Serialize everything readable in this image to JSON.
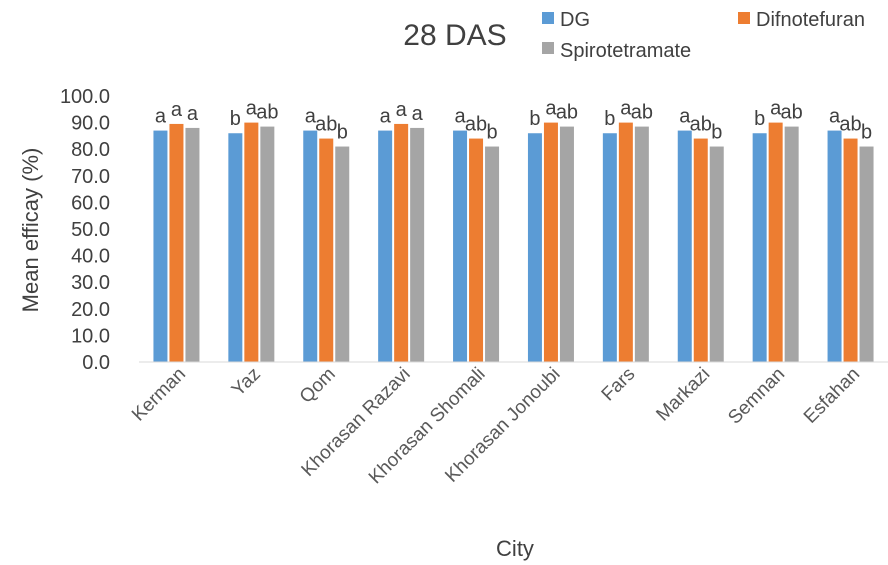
{
  "chart_data": {
    "type": "bar",
    "title": "28 DAS",
    "xlabel": "City",
    "ylabel": "Mean efficay (%)",
    "ylim": [
      0,
      100
    ],
    "ytick_step": 10,
    "ytick_labels": [
      "0.0",
      "10.0",
      "20.0",
      "30.0",
      "40.0",
      "50.0",
      "60.0",
      "70.0",
      "80.0",
      "90.0",
      "100.0"
    ],
    "grid": false,
    "legend_position": "top-right",
    "categories": [
      "Kerman",
      "Yaz",
      "Qom",
      "Khorasan Razavi",
      "Khorasan Shomali",
      "Khorasan Jonoubi",
      "Fars",
      "Markazi",
      "Semnan",
      "Esfahan"
    ],
    "series": [
      {
        "name": "DG",
        "color": "#5B9BD5",
        "values": [
          87,
          86,
          87,
          87,
          87,
          86,
          86,
          87,
          86,
          87
        ],
        "labels": [
          "a",
          "b",
          "a",
          "a",
          "a",
          "b",
          "b",
          "a",
          "b",
          "a"
        ]
      },
      {
        "name": "Difnotefuran",
        "color": "#ED7D31",
        "values": [
          89.5,
          90,
          84,
          89.5,
          84,
          90,
          90,
          84,
          90,
          84
        ],
        "labels": [
          "a",
          "a",
          "ab",
          "a",
          "ab",
          "a",
          "a",
          "ab",
          "a",
          "ab"
        ]
      },
      {
        "name": "Spirotetramate",
        "color": "#A5A5A5",
        "values": [
          88,
          88.5,
          81,
          88,
          81,
          88.5,
          88.5,
          81,
          88.5,
          81
        ],
        "labels": [
          "a",
          "ab",
          "b",
          "a",
          "b",
          "ab",
          "ab",
          "b",
          "ab",
          "b"
        ]
      }
    ]
  }
}
